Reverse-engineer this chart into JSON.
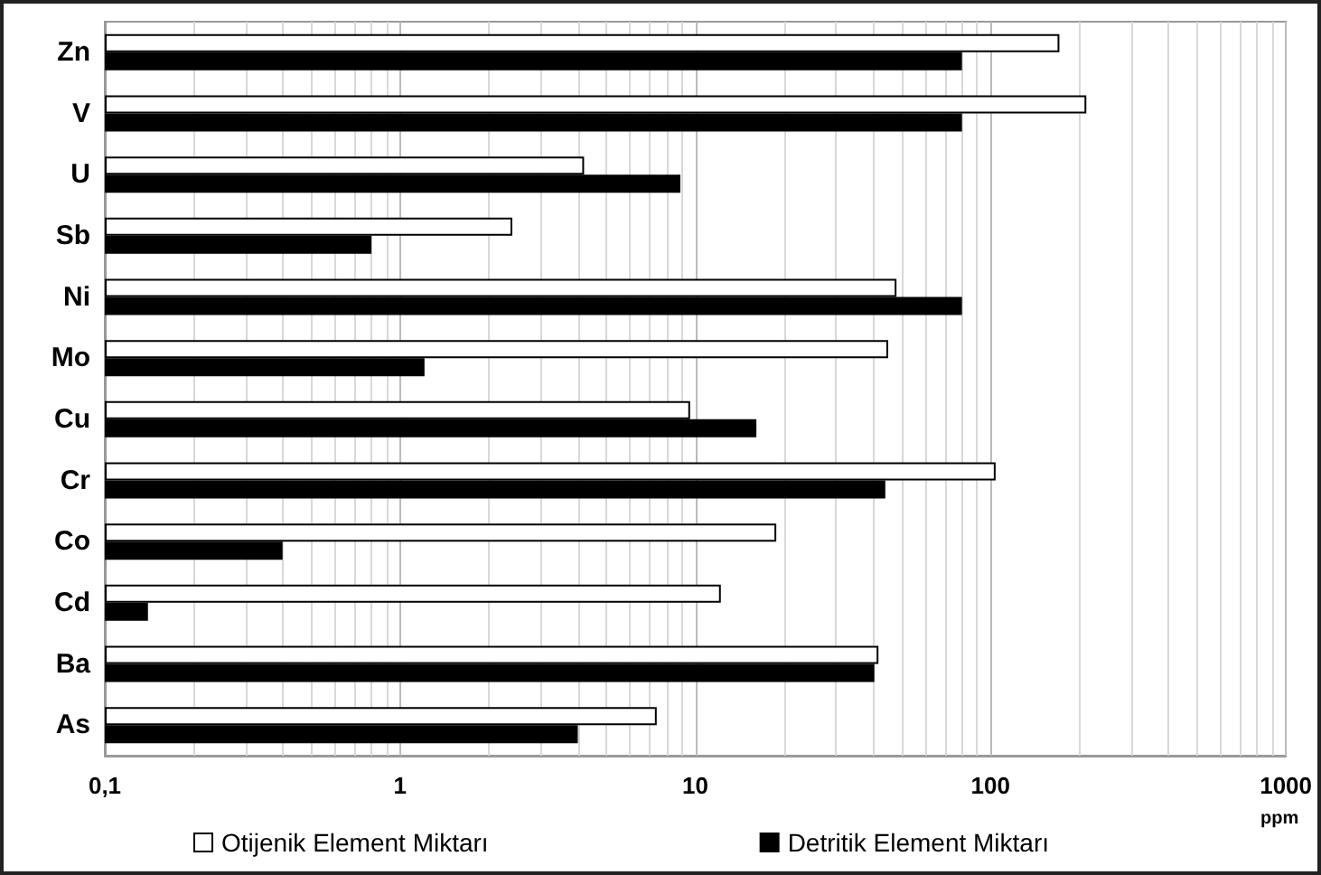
{
  "chart_data": {
    "type": "bar",
    "orientation": "horizontal",
    "log": "x",
    "xlabel": "ppm",
    "categories": [
      "Zn",
      "V",
      "U",
      "Sb",
      "Ni",
      "Mo",
      "Cu",
      "Cr",
      "Co",
      "Cd",
      "Ba",
      "As"
    ],
    "series": [
      {
        "name": "Otijenik Element Miktarı",
        "color": "#ffffff",
        "values": [
          171,
          211,
          4.2,
          2.4,
          48,
          45,
          9.6,
          104,
          18.8,
          12.2,
          41.7,
          7.4
        ]
      },
      {
        "name": "Detritik Element Miktarı",
        "color": "#000000",
        "values": [
          80,
          80,
          8.9,
          0.8,
          80,
          1.21,
          16.1,
          44,
          0.4,
          0.14,
          40.4,
          4.0
        ]
      }
    ],
    "xlim": [
      0.1,
      1000
    ],
    "xticks": [
      {
        "value": 0.1,
        "label": "0,1"
      },
      1,
      10,
      100,
      1000
    ],
    "grid": "x",
    "legend": "bottom"
  }
}
